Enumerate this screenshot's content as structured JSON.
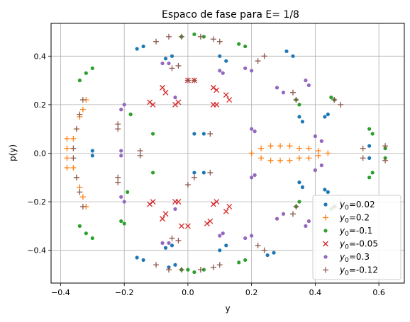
{
  "chart_data": {
    "type": "scatter",
    "title": "Espaco de fase para E= 1/8",
    "xlabel": "y",
    "ylabel": "p(y)",
    "xlim": [
      -0.43,
      0.68
    ],
    "ylim": [
      -0.535,
      0.535
    ],
    "xticks": [
      -0.4,
      -0.2,
      0.0,
      0.2,
      0.4,
      0.6
    ],
    "xtick_labels": [
      "−0.4",
      "−0.2",
      "0.0",
      "0.2",
      "0.4",
      "0.6"
    ],
    "yticks": [
      -0.4,
      -0.2,
      0.0,
      0.2,
      0.4
    ],
    "ytick_labels": [
      "−0.4",
      "−0.2",
      "0.0",
      "0.2",
      "0.4"
    ],
    "grid": true,
    "legend_position": "lower-right",
    "series": [
      {
        "name": "y0=0.02",
        "label_sym": "y",
        "label_sub": "0",
        "label_val": "=0.02",
        "marker": "dot",
        "color": "#1f77b4",
        "points": [
          [
            -0.3,
            0.01
          ],
          [
            -0.3,
            -0.01
          ],
          [
            -0.16,
            0.43
          ],
          [
            -0.14,
            0.44
          ],
          [
            -0.07,
            0.39
          ],
          [
            -0.05,
            0.4
          ],
          [
            -0.07,
            -0.39
          ],
          [
            -0.05,
            -0.38
          ],
          [
            -0.16,
            -0.43
          ],
          [
            -0.14,
            -0.44
          ],
          [
            -0.06,
            -0.47
          ],
          [
            -0.04,
            -0.46
          ],
          [
            0.02,
            -0.08
          ],
          [
            0.05,
            -0.08
          ],
          [
            0.02,
            0.08
          ],
          [
            0.05,
            0.08
          ],
          [
            0.1,
            0.4
          ],
          [
            0.12,
            0.38
          ],
          [
            0.1,
            -0.4
          ],
          [
            0.12,
            -0.38
          ],
          [
            0.25,
            -0.42
          ],
          [
            0.27,
            -0.41
          ],
          [
            0.35,
            -0.12
          ],
          [
            0.36,
            -0.14
          ],
          [
            0.35,
            0.15
          ],
          [
            0.36,
            0.13
          ],
          [
            0.43,
            0.15
          ],
          [
            0.44,
            0.16
          ],
          [
            0.43,
            -0.15
          ],
          [
            0.44,
            -0.16
          ],
          [
            0.57,
            0.03
          ],
          [
            0.57,
            -0.02
          ],
          [
            0.31,
            0.42
          ],
          [
            0.33,
            0.4
          ]
        ]
      },
      {
        "name": "y0=0.2",
        "label_sym": "y",
        "label_sub": "0",
        "label_val": "=0.2",
        "marker": "plus",
        "color": "#ff7f0e",
        "points": [
          [
            -0.32,
            0.22
          ],
          [
            -0.33,
            0.18
          ],
          [
            -0.34,
            0.15
          ],
          [
            -0.35,
            0.1
          ],
          [
            -0.36,
            0.06
          ],
          [
            -0.38,
            0.06
          ],
          [
            -0.38,
            0.02
          ],
          [
            -0.38,
            -0.02
          ],
          [
            -0.38,
            -0.06
          ],
          [
            -0.36,
            -0.06
          ],
          [
            -0.35,
            -0.1
          ],
          [
            -0.34,
            -0.14
          ],
          [
            -0.33,
            -0.18
          ],
          [
            -0.32,
            -0.22
          ],
          [
            0.2,
            0.0
          ],
          [
            0.23,
            0.02
          ],
          [
            0.26,
            0.03
          ],
          [
            0.29,
            0.03
          ],
          [
            0.32,
            0.03
          ],
          [
            0.35,
            0.02
          ],
          [
            0.38,
            0.02
          ],
          [
            0.41,
            0.01
          ],
          [
            0.44,
            0.0
          ],
          [
            0.23,
            -0.02
          ],
          [
            0.26,
            -0.03
          ],
          [
            0.29,
            -0.03
          ],
          [
            0.32,
            -0.03
          ],
          [
            0.35,
            -0.02
          ],
          [
            0.38,
            -0.02
          ],
          [
            0.41,
            -0.01
          ]
        ]
      },
      {
        "name": "y0=-0.1",
        "label_sym": "y",
        "label_sub": "0",
        "label_val": "=-0.1",
        "marker": "dot",
        "color": "#2ca02c",
        "points": [
          [
            -0.34,
            0.3
          ],
          [
            -0.32,
            0.33
          ],
          [
            -0.3,
            0.35
          ],
          [
            -0.34,
            -0.3
          ],
          [
            -0.32,
            -0.33
          ],
          [
            -0.3,
            -0.35
          ],
          [
            -0.18,
            0.16
          ],
          [
            -0.19,
            -0.16
          ],
          [
            -0.21,
            -0.28
          ],
          [
            -0.2,
            -0.29
          ],
          [
            -0.11,
            0.08
          ],
          [
            -0.11,
            -0.08
          ],
          [
            -0.02,
            0.48
          ],
          [
            0.02,
            0.49
          ],
          [
            0.05,
            0.48
          ],
          [
            -0.02,
            -0.48
          ],
          [
            0.02,
            -0.49
          ],
          [
            0.05,
            -0.48
          ],
          [
            0.16,
            0.45
          ],
          [
            0.18,
            0.44
          ],
          [
            0.16,
            -0.45
          ],
          [
            0.18,
            -0.44
          ],
          [
            0.34,
            0.22
          ],
          [
            0.35,
            0.2
          ],
          [
            0.34,
            -0.22
          ],
          [
            0.35,
            -0.2
          ],
          [
            0.45,
            0.23
          ],
          [
            0.46,
            0.22
          ],
          [
            0.45,
            -0.23
          ],
          [
            0.46,
            -0.22
          ],
          [
            0.57,
            0.1
          ],
          [
            0.58,
            0.08
          ],
          [
            0.57,
            -0.1
          ],
          [
            0.58,
            -0.08
          ],
          [
            0.62,
            0.02
          ],
          [
            0.62,
            -0.02
          ],
          [
            0.0,
            -0.48
          ]
        ]
      },
      {
        "name": "y0=-0.05",
        "label_sym": "y",
        "label_sub": "0",
        "label_val": "=-0.05",
        "marker": "x",
        "color": "#d62728",
        "points": [
          [
            -0.08,
            0.27
          ],
          [
            -0.07,
            0.25
          ],
          [
            0.0,
            0.3
          ],
          [
            0.02,
            0.3
          ],
          [
            0.08,
            0.27
          ],
          [
            0.09,
            0.26
          ],
          [
            0.12,
            0.24
          ],
          [
            0.13,
            0.22
          ],
          [
            -0.12,
            0.21
          ],
          [
            -0.11,
            0.2
          ],
          [
            -0.04,
            0.2
          ],
          [
            -0.03,
            0.21
          ],
          [
            0.08,
            0.2
          ],
          [
            0.09,
            0.2
          ],
          [
            -0.12,
            -0.21
          ],
          [
            -0.11,
            -0.2
          ],
          [
            -0.04,
            -0.2
          ],
          [
            -0.03,
            -0.2
          ],
          [
            0.08,
            -0.21
          ],
          [
            0.09,
            -0.2
          ],
          [
            0.12,
            -0.24
          ],
          [
            0.13,
            -0.22
          ],
          [
            -0.08,
            -0.27
          ],
          [
            -0.07,
            -0.25
          ],
          [
            -0.02,
            -0.3
          ],
          [
            0.0,
            -0.3
          ],
          [
            0.06,
            -0.29
          ],
          [
            0.07,
            -0.28
          ]
        ]
      },
      {
        "name": "y0=0.3",
        "label_sym": "y",
        "label_sub": "0",
        "label_val": "=0.3",
        "marker": "dot",
        "color": "#9467bd",
        "points": [
          [
            -0.2,
            0.2
          ],
          [
            -0.21,
            0.18
          ],
          [
            -0.21,
            0.01
          ],
          [
            -0.21,
            -0.01
          ],
          [
            -0.2,
            -0.2
          ],
          [
            -0.21,
            -0.18
          ],
          [
            -0.08,
            0.37
          ],
          [
            -0.06,
            0.37
          ],
          [
            -0.08,
            -0.37
          ],
          [
            -0.06,
            -0.37
          ],
          [
            -0.04,
            0.23
          ],
          [
            -0.04,
            -0.23
          ],
          [
            0.1,
            0.34
          ],
          [
            0.11,
            0.33
          ],
          [
            0.1,
            -0.34
          ],
          [
            0.11,
            -0.33
          ],
          [
            0.18,
            0.35
          ],
          [
            0.2,
            0.34
          ],
          [
            0.18,
            -0.35
          ],
          [
            0.2,
            -0.34
          ],
          [
            0.2,
            0.1
          ],
          [
            0.21,
            0.09
          ],
          [
            0.2,
            -0.1
          ],
          [
            0.21,
            -0.09
          ],
          [
            0.28,
            0.27
          ],
          [
            0.3,
            0.25
          ],
          [
            0.28,
            -0.27
          ],
          [
            0.3,
            -0.25
          ],
          [
            0.37,
            0.3
          ],
          [
            0.38,
            0.28
          ],
          [
            0.37,
            -0.3
          ],
          [
            0.38,
            -0.28
          ],
          [
            0.4,
            0.07
          ],
          [
            0.42,
            0.05
          ],
          [
            0.4,
            -0.07
          ],
          [
            0.42,
            -0.05
          ]
        ]
      },
      {
        "name": "y0=-0.12",
        "label_sym": "y",
        "label_sub": "0",
        "label_val": "=-0.12",
        "marker": "plus",
        "color": "#8c564b",
        "points": [
          [
            -0.33,
            0.22
          ],
          [
            -0.34,
            0.16
          ],
          [
            -0.35,
            0.1
          ],
          [
            -0.36,
            0.02
          ],
          [
            -0.36,
            -0.02
          ],
          [
            -0.35,
            -0.1
          ],
          [
            -0.34,
            -0.16
          ],
          [
            -0.33,
            -0.22
          ],
          [
            -0.22,
            0.12
          ],
          [
            -0.22,
            0.1
          ],
          [
            -0.22,
            -0.12
          ],
          [
            -0.22,
            -0.1
          ],
          [
            -0.15,
            0.01
          ],
          [
            -0.15,
            -0.01
          ],
          [
            -0.05,
            0.35
          ],
          [
            -0.03,
            0.36
          ],
          [
            -0.05,
            -0.35
          ],
          [
            -0.03,
            -0.36
          ],
          [
            -0.1,
            0.46
          ],
          [
            -0.06,
            0.48
          ],
          [
            -0.02,
            0.48
          ],
          [
            0.04,
            0.48
          ],
          [
            0.08,
            0.47
          ],
          [
            0.1,
            0.46
          ],
          [
            -0.1,
            -0.46
          ],
          [
            -0.06,
            -0.48
          ],
          [
            -0.02,
            -0.48
          ],
          [
            0.04,
            -0.48
          ],
          [
            0.08,
            -0.47
          ],
          [
            0.1,
            -0.46
          ],
          [
            0.0,
            0.3
          ],
          [
            0.02,
            0.3
          ],
          [
            0.02,
            -0.1
          ],
          [
            0.0,
            -0.13
          ],
          [
            0.07,
            0.08
          ],
          [
            0.07,
            -0.08
          ],
          [
            0.22,
            0.38
          ],
          [
            0.24,
            0.4
          ],
          [
            0.22,
            -0.38
          ],
          [
            0.24,
            -0.4
          ],
          [
            0.33,
            0.25
          ],
          [
            0.34,
            0.22
          ],
          [
            0.33,
            -0.25
          ],
          [
            0.34,
            -0.22
          ],
          [
            0.46,
            0.22
          ],
          [
            0.48,
            0.2
          ],
          [
            0.46,
            -0.22
          ],
          [
            0.48,
            -0.2
          ],
          [
            0.55,
            0.02
          ],
          [
            0.55,
            -0.02
          ],
          [
            0.62,
            0.03
          ],
          [
            0.62,
            -0.03
          ]
        ]
      }
    ]
  }
}
